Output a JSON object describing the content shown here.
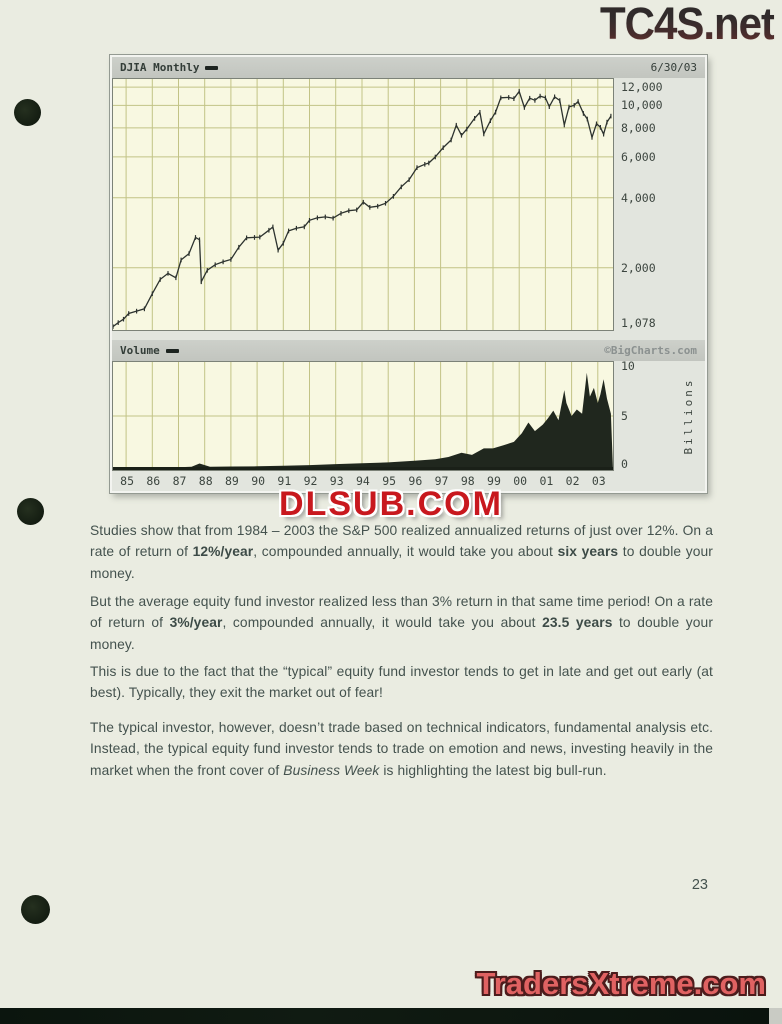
{
  "page": {
    "number": "23"
  },
  "watermarks": {
    "top_right": "TC4S.net",
    "middle": "DLSUB.COM",
    "bottom_right": "TradersXtreme.com"
  },
  "chart_data": [
    {
      "type": "line",
      "title": "DJIA Monthly",
      "as_of_date": "6/30/03",
      "yscale": "log",
      "ylim": [
        1078,
        13000
      ],
      "xlim": [
        1984.5,
        2003.58
      ],
      "grid": true,
      "yticks": [
        12000,
        10000,
        8000,
        6000,
        4000,
        2000,
        1078
      ],
      "ytick_labels": [
        "12,000",
        "10,000",
        "8,000",
        "6,000",
        "4,000",
        "2,000",
        "1,078"
      ],
      "xtick_years": [
        1985,
        1986,
        1987,
        1988,
        1989,
        1990,
        1991,
        1992,
        1993,
        1994,
        1995,
        1996,
        1997,
        1998,
        1999,
        2000,
        2001,
        2002,
        2003
      ],
      "xtick_labels": [
        "85",
        "86",
        "87",
        "88",
        "89",
        "90",
        "91",
        "92",
        "93",
        "94",
        "95",
        "96",
        "97",
        "98",
        "99",
        "00",
        "01",
        "02",
        "03"
      ],
      "x": [
        1984.5,
        1984.7,
        1984.9,
        1985.1,
        1985.4,
        1985.7,
        1986.0,
        1986.3,
        1986.6,
        1986.9,
        1987.1,
        1987.4,
        1987.65,
        1987.8,
        1987.87,
        1988.1,
        1988.4,
        1988.7,
        1989.0,
        1989.3,
        1989.6,
        1989.9,
        1990.1,
        1990.45,
        1990.6,
        1990.8,
        1991.0,
        1991.2,
        1991.5,
        1991.8,
        1992.0,
        1992.3,
        1992.6,
        1992.9,
        1993.2,
        1993.5,
        1993.8,
        1994.05,
        1994.3,
        1994.6,
        1994.9,
        1995.2,
        1995.5,
        1995.8,
        1996.1,
        1996.4,
        1996.55,
        1996.8,
        1997.1,
        1997.4,
        1997.6,
        1997.8,
        1998.0,
        1998.3,
        1998.5,
        1998.65,
        1998.9,
        1999.1,
        1999.3,
        1999.6,
        1999.8,
        2000.0,
        2000.2,
        2000.4,
        2000.6,
        2000.8,
        2001.0,
        2001.15,
        2001.35,
        2001.55,
        2001.72,
        2001.9,
        2002.1,
        2002.25,
        2002.45,
        2002.6,
        2002.78,
        2002.95,
        2003.1,
        2003.22,
        2003.35,
        2003.5
      ],
      "values": [
        1115,
        1160,
        1200,
        1270,
        1300,
        1330,
        1546,
        1780,
        1890,
        1810,
        2160,
        2300,
        2700,
        2640,
        1740,
        1950,
        2060,
        2120,
        2170,
        2450,
        2690,
        2700,
        2710,
        2900,
        2999,
        2380,
        2550,
        2880,
        2960,
        3000,
        3200,
        3280,
        3310,
        3270,
        3430,
        3520,
        3550,
        3830,
        3640,
        3680,
        3790,
        4060,
        4460,
        4790,
        5400,
        5580,
        5650,
        6000,
        6580,
        7100,
        8220,
        7440,
        7910,
        8800,
        9340,
        7540,
        8600,
        9360,
        10790,
        10830,
        10700,
        11497,
        9800,
        10750,
        10520,
        10970,
        10790,
        9880,
        10900,
        10500,
        8240,
        9850,
        10020,
        10400,
        9240,
        8740,
        7290,
        8340,
        8050,
        7520,
        8480,
        9000
      ]
    },
    {
      "type": "area",
      "title": "Volume",
      "ylabel": "Billions",
      "source": "©BigCharts.com",
      "ylim": [
        0,
        10
      ],
      "xlim": [
        1984.5,
        2003.58
      ],
      "yticks": [
        10,
        5,
        0
      ],
      "ytick_labels": [
        "10",
        "5",
        "0"
      ],
      "grid": true,
      "x": [
        1984.5,
        1985.5,
        1986.5,
        1987.5,
        1987.8,
        1988.2,
        1989.0,
        1990.0,
        1991.0,
        1992.0,
        1993.0,
        1994.0,
        1995.0,
        1996.0,
        1996.8,
        1997.3,
        1997.8,
        1998.2,
        1998.65,
        1999.0,
        1999.4,
        1999.8,
        2000.1,
        2000.35,
        2000.6,
        2000.9,
        2001.1,
        2001.3,
        2001.5,
        2001.72,
        2001.8,
        2002.0,
        2002.2,
        2002.4,
        2002.58,
        2002.7,
        2002.85,
        2003.0,
        2003.1,
        2003.22,
        2003.35,
        2003.5
      ],
      "values": [
        0.15,
        0.18,
        0.2,
        0.3,
        0.6,
        0.3,
        0.32,
        0.34,
        0.4,
        0.45,
        0.55,
        0.62,
        0.7,
        0.85,
        1.0,
        1.2,
        1.6,
        1.4,
        2.0,
        2.0,
        2.3,
        2.6,
        3.4,
        4.4,
        3.6,
        4.2,
        4.8,
        5.5,
        4.6,
        7.4,
        6.2,
        5.0,
        5.6,
        5.2,
        9.0,
        6.8,
        7.6,
        6.2,
        7.0,
        8.4,
        6.6,
        5.2
      ]
    }
  ],
  "paragraphs": [
    {
      "runs": [
        {
          "t": "Studies show that from 1984 – 2003 the S&P 500 realized annualized returns of just over 12%.  On a rate of return of "
        },
        {
          "t": "12%/year",
          "b": true
        },
        {
          "t": ", compounded annually, it would take you about "
        },
        {
          "t": "six years",
          "b": true
        },
        {
          "t": " to double your money."
        }
      ]
    },
    {
      "runs": [
        {
          "t": "But the average equity fund investor realized less than 3% return in that same time period!  On a rate of return of "
        },
        {
          "t": "3%/year",
          "b": true
        },
        {
          "t": ", compounded annually, it would take you about "
        },
        {
          "t": "23.5 years",
          "b": true
        },
        {
          "t": " to double your money."
        }
      ]
    },
    {
      "runs": [
        {
          "t": "This is due to the fact that the “typical” equity fund investor tends to get in late and get out early (at best).   Typically, they exit the market out of fear!"
        }
      ]
    },
    {
      "runs": [
        {
          "t": "The typical investor, however, doesn’t trade based on technical indicators, fundamental analysis etc.  Instead, the typical equity fund investor tends to trade on emotion and news, investing heavily in the market when the front cover of "
        },
        {
          "t": "Business Week",
          "i": true
        },
        {
          "t": " is highlighting the latest big bull-run."
        }
      ]
    }
  ]
}
